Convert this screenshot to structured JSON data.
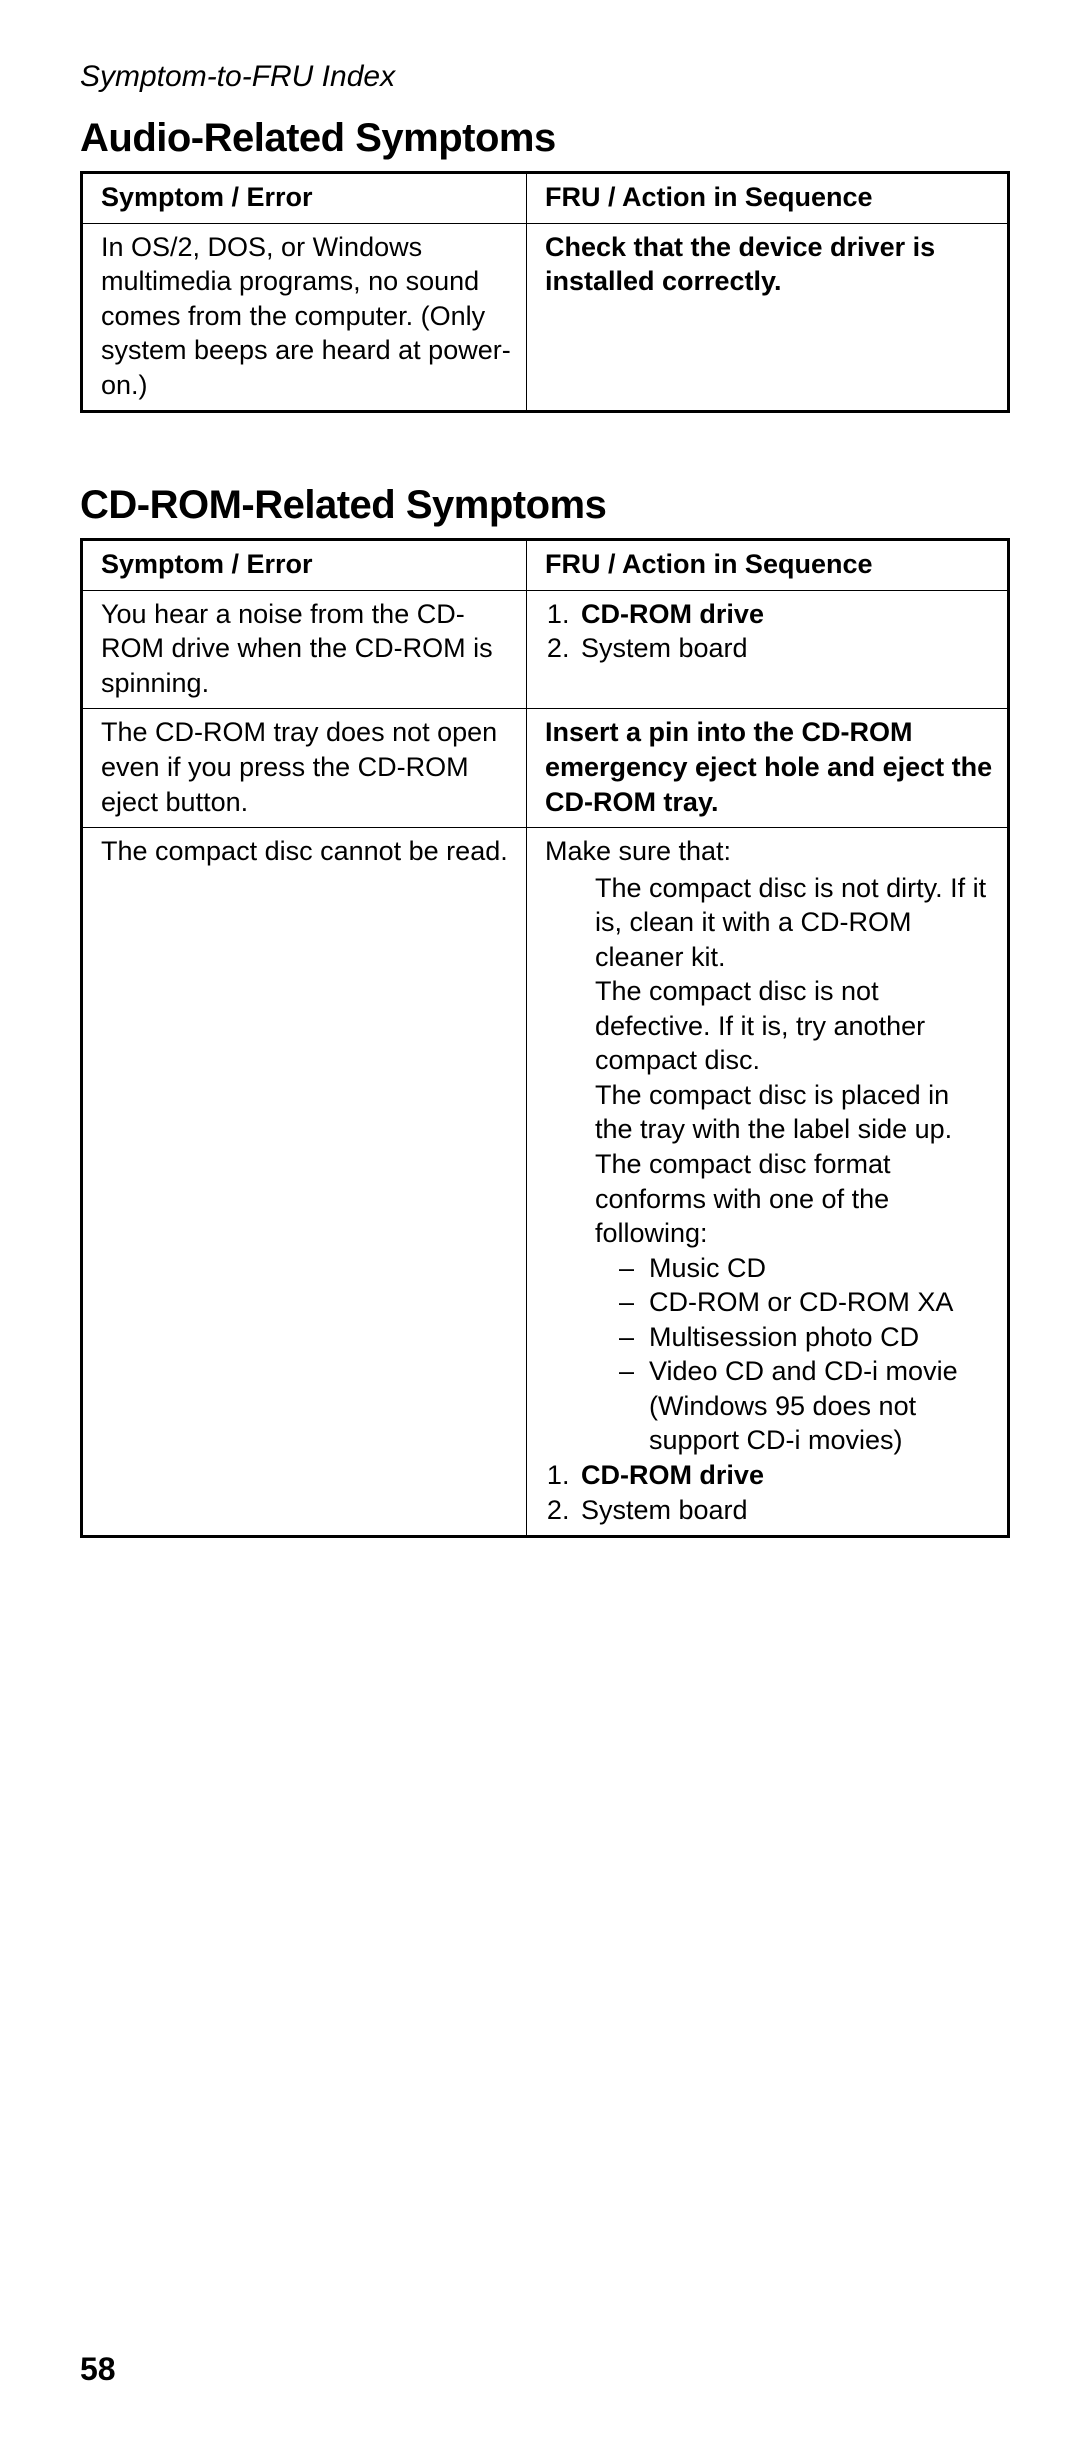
{
  "header_index": "Symptom-to-FRU Index",
  "page_number": "58",
  "audio": {
    "heading": "Audio-Related Symptoms",
    "th_sym": "Symptom / Error",
    "th_act": "FRU / Action in Sequence",
    "row1_sym": "In OS/2, DOS, or Windows multimedia programs, no sound comes from the computer.  (Only system beeps are heard at power-on.)",
    "row1_act": "Check that the device driver is installed correctly."
  },
  "cdrom": {
    "heading": "CD-ROM-Related Symptoms",
    "th_sym": "Symptom / Error",
    "th_act": "FRU / Action in Sequence",
    "r1_sym": "You hear a noise from the CD-ROM drive when the CD-ROM is spinning.",
    "r1_a1": "CD-ROM drive",
    "r1_a2": "System board",
    "r2_sym": "The CD-ROM tray does not open even if you press the CD-ROM eject button.",
    "r2_act": "Insert a pin into the CD-ROM emergency eject hole and eject the CD-ROM tray.",
    "r3_sym": "The compact disc cannot be read.",
    "r3_lead": "Make sure that:",
    "r3_b1": "The compact disc is not dirty.  If it is, clean it with a CD-ROM cleaner kit.",
    "r3_b2": "The compact disc is not defective.  If it is, try another compact disc.",
    "r3_b3": "The compact disc is placed in the tray with the label side up.",
    "r3_b4": "The compact disc format conforms with one of the following:",
    "r3_d1": "Music CD",
    "r3_d2": "CD-ROM or CD-ROM XA",
    "r3_d3": "Multisession photo CD",
    "r3_d4": "Video CD and CD-i movie (Windows 95 does not support CD-i movies)",
    "r3_a1": "CD-ROM drive",
    "r3_a2": "System board"
  }
}
